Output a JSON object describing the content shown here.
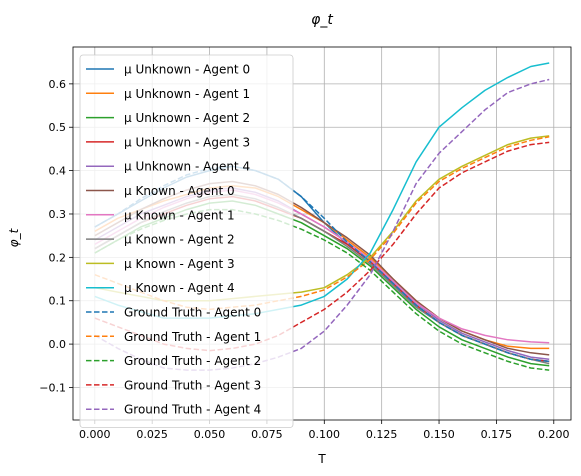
{
  "chart_data": {
    "type": "line",
    "title": "φ_t",
    "xlabel": "T",
    "ylabel": "φ_t",
    "xlim": [
      -0.0095,
      0.2075
    ],
    "ylim": [
      -0.175,
      0.685
    ],
    "xticks": [
      0.0,
      0.025,
      0.05,
      0.075,
      0.1,
      0.125,
      0.15,
      0.175,
      0.2
    ],
    "xtick_labels": [
      "0.000",
      "0.025",
      "0.050",
      "0.075",
      "0.100",
      "0.125",
      "0.150",
      "0.175",
      "0.200"
    ],
    "yticks": [
      -0.1,
      0.0,
      0.1,
      0.2,
      0.3,
      0.4,
      0.5,
      0.6
    ],
    "ytick_labels": [
      "−0.1",
      "0.0",
      "0.1",
      "0.2",
      "0.3",
      "0.4",
      "0.5",
      "0.6"
    ],
    "grid": true,
    "legend_position": "upper-left",
    "x": [
      0,
      0.01,
      0.02,
      0.03,
      0.04,
      0.05,
      0.06,
      0.07,
      0.08,
      0.09,
      0.1,
      0.11,
      0.12,
      0.13,
      0.14,
      0.15,
      0.16,
      0.17,
      0.18,
      0.19,
      0.198
    ],
    "series": [
      {
        "name": "μ Unknown - Agent 0",
        "color": "#1f77b4",
        "style": "solid",
        "values": [
          0.27,
          0.3,
          0.33,
          0.36,
          0.385,
          0.4,
          0.41,
          0.4,
          0.38,
          0.34,
          0.28,
          0.23,
          0.19,
          0.14,
          0.09,
          0.05,
          0.02,
          0.0,
          -0.02,
          -0.035,
          -0.04
        ]
      },
      {
        "name": "μ Unknown - Agent 1",
        "color": "#ff7f0e",
        "style": "solid",
        "values": [
          0.26,
          0.29,
          0.31,
          0.33,
          0.345,
          0.36,
          0.365,
          0.36,
          0.34,
          0.31,
          0.28,
          0.24,
          0.2,
          0.15,
          0.1,
          0.06,
          0.03,
          0.01,
          -0.005,
          -0.01,
          -0.01
        ]
      },
      {
        "name": "μ Unknown - Agent 2",
        "color": "#2ca02c",
        "style": "solid",
        "values": [
          0.21,
          0.24,
          0.27,
          0.29,
          0.31,
          0.325,
          0.33,
          0.32,
          0.3,
          0.28,
          0.25,
          0.22,
          0.18,
          0.13,
          0.08,
          0.04,
          0.01,
          -0.01,
          -0.03,
          -0.045,
          -0.05
        ]
      },
      {
        "name": "μ Unknown - Agent 3",
        "color": "#d62728",
        "style": "solid",
        "values": [
          0.22,
          0.25,
          0.28,
          0.3,
          0.32,
          0.335,
          0.34,
          0.33,
          0.31,
          0.29,
          0.26,
          0.23,
          0.19,
          0.14,
          0.09,
          0.05,
          0.02,
          0.0,
          -0.02,
          -0.035,
          -0.04
        ]
      },
      {
        "name": "μ Unknown - Agent 4",
        "color": "#9467bd",
        "style": "solid",
        "values": [
          0.24,
          0.27,
          0.3,
          0.32,
          0.34,
          0.355,
          0.36,
          0.35,
          0.33,
          0.3,
          0.27,
          0.235,
          0.195,
          0.145,
          0.095,
          0.055,
          0.025,
          0.005,
          -0.015,
          -0.03,
          -0.035
        ]
      },
      {
        "name": "μ Known - Agent 0",
        "color": "#8c564b",
        "style": "solid",
        "values": [
          0.25,
          0.28,
          0.31,
          0.335,
          0.355,
          0.37,
          0.375,
          0.365,
          0.345,
          0.315,
          0.28,
          0.245,
          0.205,
          0.15,
          0.1,
          0.06,
          0.03,
          0.01,
          -0.01,
          -0.02,
          -0.025
        ]
      },
      {
        "name": "μ Known - Agent 1",
        "color": "#e377c2",
        "style": "solid",
        "values": [
          0.23,
          0.26,
          0.29,
          0.315,
          0.335,
          0.35,
          0.355,
          0.345,
          0.325,
          0.3,
          0.27,
          0.235,
          0.195,
          0.145,
          0.095,
          0.06,
          0.035,
          0.02,
          0.01,
          0.005,
          0.003
        ]
      },
      {
        "name": "μ Known - Agent 2",
        "color": "#7f7f7f",
        "style": "solid",
        "values": [
          0.22,
          0.25,
          0.28,
          0.305,
          0.325,
          0.34,
          0.345,
          0.335,
          0.315,
          0.29,
          0.26,
          0.225,
          0.185,
          0.135,
          0.085,
          0.05,
          0.02,
          0.0,
          -0.02,
          -0.035,
          -0.045
        ]
      },
      {
        "name": "μ Known - Agent 3",
        "color": "#bcbd22",
        "style": "solid",
        "values": [
          0.13,
          0.12,
          0.11,
          0.1,
          0.1,
          0.1,
          0.105,
          0.11,
          0.115,
          0.12,
          0.13,
          0.16,
          0.2,
          0.26,
          0.33,
          0.38,
          0.41,
          0.435,
          0.46,
          0.475,
          0.48
        ]
      },
      {
        "name": "μ Known - Agent 4",
        "color": "#17becf",
        "style": "solid",
        "values": [
          0.11,
          0.09,
          0.075,
          0.06,
          0.06,
          0.06,
          0.065,
          0.07,
          0.08,
          0.09,
          0.11,
          0.15,
          0.21,
          0.31,
          0.42,
          0.5,
          0.545,
          0.585,
          0.615,
          0.64,
          0.648
        ]
      },
      {
        "name": "Ground Truth - Agent 0",
        "color": "#1f77b4",
        "style": "dashed",
        "values": [
          0.27,
          0.3,
          0.335,
          0.365,
          0.39,
          0.405,
          0.41,
          0.4,
          0.38,
          0.34,
          0.29,
          0.235,
          0.19,
          0.14,
          0.09,
          0.05,
          0.02,
          0.0,
          -0.02,
          -0.035,
          -0.04
        ]
      },
      {
        "name": "Ground Truth - Agent 1",
        "color": "#ff7f0e",
        "style": "dashed",
        "values": [
          0.16,
          0.14,
          0.12,
          0.1,
          0.085,
          0.08,
          0.085,
          0.09,
          0.1,
          0.11,
          0.125,
          0.155,
          0.195,
          0.255,
          0.325,
          0.375,
          0.405,
          0.43,
          0.455,
          0.47,
          0.478
        ]
      },
      {
        "name": "Ground Truth - Agent 2",
        "color": "#2ca02c",
        "style": "dashed",
        "values": [
          0.21,
          0.24,
          0.265,
          0.285,
          0.3,
          0.31,
          0.31,
          0.3,
          0.285,
          0.265,
          0.24,
          0.21,
          0.17,
          0.12,
          0.07,
          0.03,
          0.0,
          -0.02,
          -0.04,
          -0.055,
          -0.06
        ]
      },
      {
        "name": "Ground Truth - Agent 3",
        "color": "#d62728",
        "style": "dashed",
        "values": [
          0.06,
          0.04,
          0.02,
          0.0,
          -0.01,
          -0.015,
          -0.01,
          0.0,
          0.02,
          0.05,
          0.08,
          0.12,
          0.17,
          0.23,
          0.3,
          0.36,
          0.395,
          0.42,
          0.445,
          0.46,
          0.465
        ]
      },
      {
        "name": "Ground Truth - Agent 4",
        "color": "#9467bd",
        "style": "dashed",
        "values": [
          0.02,
          -0.01,
          -0.035,
          -0.055,
          -0.06,
          -0.06,
          -0.055,
          -0.045,
          -0.03,
          -0.01,
          0.03,
          0.09,
          0.16,
          0.26,
          0.37,
          0.44,
          0.49,
          0.54,
          0.58,
          0.6,
          0.61
        ]
      }
    ]
  }
}
